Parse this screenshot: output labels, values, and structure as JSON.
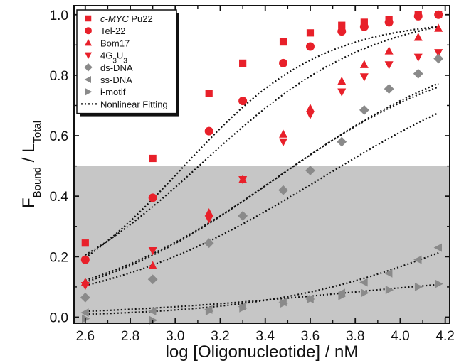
{
  "chart_data": {
    "type": "scatter",
    "title": "",
    "xlabel": "log [Oligonucleotide] / nM",
    "ylabel": {
      "main": "F",
      "sub1": "Bound",
      "mid": " / L",
      "sub2": "Total"
    },
    "xlim": [
      2.55,
      4.22
    ],
    "ylim": [
      -0.02,
      1.03
    ],
    "x_ticks": [
      "2.6",
      "2.8",
      "3.0",
      "3.2",
      "3.4",
      "3.6",
      "3.8",
      "4.0",
      "4.2"
    ],
    "y_ticks": [
      "0.0",
      "0.2",
      "0.4",
      "0.6",
      "0.8",
      "1.0"
    ],
    "shaded_region": {
      "y_from": -0.02,
      "y_to": 0.5,
      "color": "#c6c6c6"
    },
    "legend_position": "top-left",
    "series": [
      {
        "name": "c-MYC Pu22",
        "name_italic": "c-MYC",
        "name_rest": " Pu22",
        "marker": "square",
        "color": "#e8202a",
        "x": [
          2.6,
          2.9,
          3.15,
          3.3,
          3.48,
          3.6,
          3.74,
          3.84,
          3.95,
          4.08,
          4.17
        ],
        "y": [
          0.245,
          0.525,
          0.74,
          0.84,
          0.91,
          0.94,
          0.965,
          0.975,
          0.985,
          1.0,
          1.0
        ]
      },
      {
        "name": "Tel-22",
        "marker": "circle",
        "color": "#e8202a",
        "x": [
          2.6,
          2.9,
          3.15,
          3.3,
          3.48,
          3.6,
          3.74,
          3.84,
          3.95,
          4.08,
          4.17
        ],
        "y": [
          0.19,
          0.395,
          0.615,
          0.715,
          0.84,
          0.895,
          0.945,
          0.96,
          0.975,
          0.995,
          1.0
        ]
      },
      {
        "name": "Bom17",
        "marker": "triangle-up",
        "color": "#e8202a",
        "x": [
          2.6,
          2.9,
          3.15,
          3.3,
          3.48,
          3.6,
          3.74,
          3.84,
          3.95,
          4.08,
          4.17
        ],
        "y": [
          0.115,
          0.17,
          0.345,
          0.455,
          0.605,
          0.69,
          0.78,
          0.835,
          0.88,
          0.925,
          0.955
        ]
      },
      {
        "name": "4G3U3",
        "name_parts": [
          "4G",
          "3",
          "U",
          "3"
        ],
        "marker": "triangle-down",
        "color": "#e8202a",
        "x": [
          2.6,
          2.9,
          3.15,
          3.3,
          3.48,
          3.6,
          3.74,
          3.84,
          3.95,
          4.08,
          4.17
        ],
        "y": [
          0.105,
          0.22,
          0.325,
          0.455,
          0.58,
          0.67,
          0.745,
          0.795,
          0.835,
          0.86,
          0.875
        ]
      },
      {
        "name": "ds-DNA",
        "marker": "diamond",
        "color": "#8a8a8a",
        "x": [
          2.6,
          2.9,
          3.15,
          3.3,
          3.48,
          3.6,
          3.74,
          3.84,
          3.95,
          4.08,
          4.17
        ],
        "y": [
          0.065,
          0.125,
          0.245,
          0.335,
          0.42,
          0.485,
          0.58,
          0.685,
          0.755,
          0.805,
          0.855
        ]
      },
      {
        "name": "ss-DNA",
        "marker": "triangle-left",
        "color": "#8a8a8a",
        "x": [
          2.6,
          2.9,
          3.15,
          3.3,
          3.48,
          3.6,
          3.74,
          3.84,
          3.95,
          4.08,
          4.17
        ],
        "y": [
          0.015,
          0.02,
          0.025,
          0.035,
          0.05,
          0.06,
          0.08,
          0.115,
          0.145,
          0.19,
          0.23
        ]
      },
      {
        "name": "i-motif",
        "marker": "triangle-right",
        "color": "#8a8a8a",
        "x": [
          2.6,
          2.9,
          3.15,
          3.3,
          3.48,
          3.6,
          3.74,
          3.84,
          3.95,
          4.08,
          4.17
        ],
        "y": [
          -0.005,
          -0.01,
          0.02,
          0.03,
          0.045,
          0.06,
          0.07,
          0.08,
          0.09,
          0.1,
          0.11
        ]
      }
    ],
    "fit_legend_label": "Nonlinear Fitting",
    "fits": [
      {
        "name": "c-MYC Pu22 fit",
        "top": 0.985,
        "logK": 3.03,
        "h": 1.4,
        "bottom": 0.0
      },
      {
        "name": "Tel-22 fit",
        "top": 1.02,
        "logK": 3.12,
        "h": 1.15,
        "bottom": 0.0
      },
      {
        "name": "Bom17 fit",
        "top": 0.94,
        "logK": 3.47,
        "h": 0.95,
        "bottom": 0.0
      },
      {
        "name": "4G3U3 fit",
        "top": 0.9,
        "logK": 3.43,
        "h": 1.0,
        "bottom": 0.0
      },
      {
        "name": "ds-DNA fit",
        "top": 0.92,
        "logK": 3.65,
        "h": 0.85,
        "bottom": 0.0
      },
      {
        "name": "ss-DNA fit",
        "top": 0.5,
        "logK": 4.3,
        "h": 1.0,
        "bottom": 0.0
      },
      {
        "name": "i-motif fit",
        "top": 0.16,
        "logK": 3.75,
        "h": 0.75,
        "bottom": 0.0
      }
    ]
  }
}
